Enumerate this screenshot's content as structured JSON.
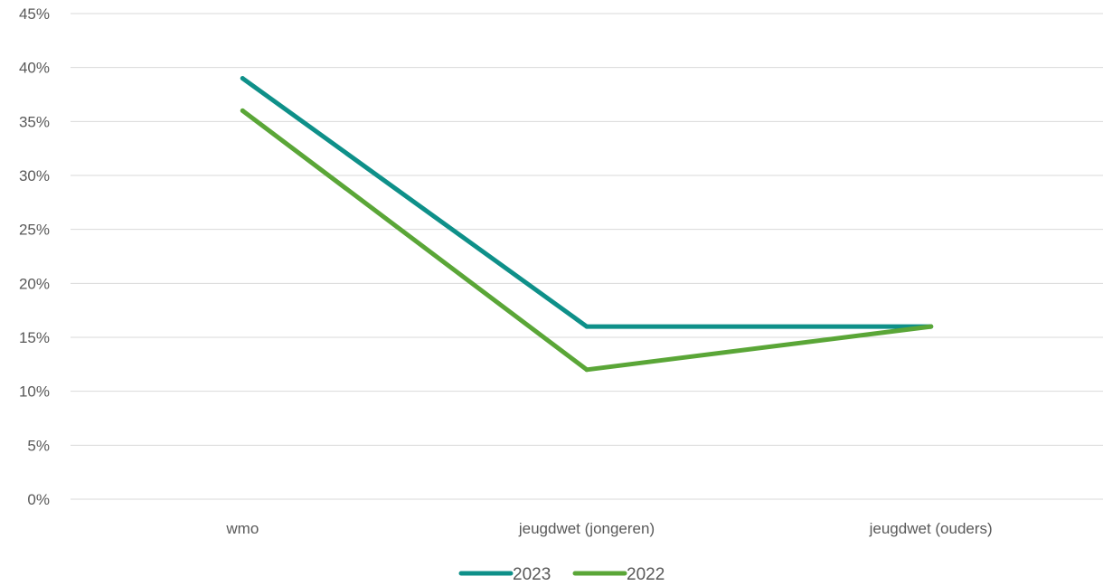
{
  "chart_data": {
    "type": "line",
    "categories": [
      "wmo",
      "jeugdwet (jongeren)",
      "jeugdwet (ouders)"
    ],
    "series": [
      {
        "name": "2023",
        "values": [
          39,
          16,
          16
        ],
        "color": "#0E9089"
      },
      {
        "name": "2022",
        "values": [
          36,
          12,
          16
        ],
        "color": "#5AA637"
      }
    ],
    "ylim": [
      0,
      45
    ],
    "y_ticks": [
      0,
      5,
      10,
      15,
      20,
      25,
      30,
      35,
      40,
      45
    ],
    "y_tick_format": "percent",
    "grid": true,
    "legend_position": "bottom"
  }
}
